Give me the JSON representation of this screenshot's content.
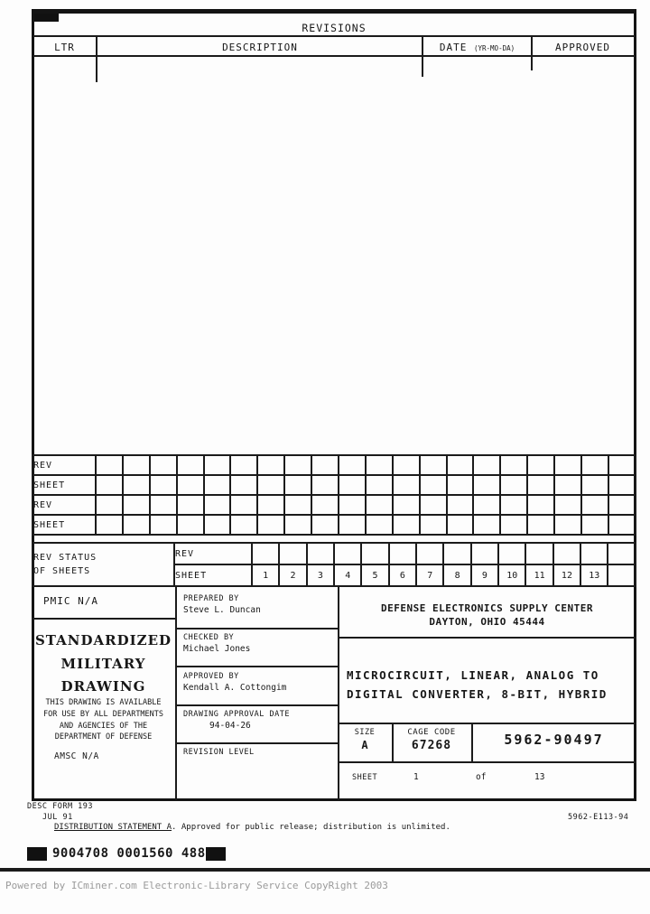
{
  "revisions": {
    "title": "REVISIONS",
    "col_ltr": "LTR",
    "col_description": "DESCRIPTION",
    "col_date": "DATE",
    "col_date_suffix": "(YR-MO-DA)",
    "col_approved": "APPROVED"
  },
  "rev_status": {
    "row_labels": [
      "REV",
      "SHEET",
      "REV",
      "SHEET"
    ],
    "group_label_line1": "REV STATUS",
    "group_label_line2": "OF SHEETS",
    "rev_label": "REV",
    "sheet_label": "SHEET",
    "sheet_numbers": [
      "1",
      "2",
      "3",
      "4",
      "5",
      "6",
      "7",
      "8",
      "9",
      "10",
      "11",
      "12",
      "13"
    ]
  },
  "title_block": {
    "pmic": "PMIC N/A",
    "smd_lines": [
      "STANDARDIZED",
      "MILITARY",
      "DRAWING"
    ],
    "availability_lines": [
      "THIS DRAWING IS AVAILABLE",
      "FOR USE BY ALL DEPARTMENTS",
      "AND AGENCIES OF THE",
      "DEPARTMENT OF DEFENSE"
    ],
    "amsc": "AMSC N/A",
    "prepared_by_label": "PREPARED BY",
    "prepared_by": "Steve L. Duncan",
    "checked_by_label": "CHECKED BY",
    "checked_by": "Michael Jones",
    "approved_by_label": "APPROVED BY",
    "approved_by": "Kendall A. Cottongim",
    "approval_date_label": "DRAWING APPROVAL DATE",
    "approval_date": "94-04-26",
    "revision_level_label": "REVISION LEVEL",
    "agency_line1": "DEFENSE ELECTRONICS SUPPLY CENTER",
    "agency_line2": "DAYTON, OHIO  45444",
    "drawing_title_line1": "MICROCIRCUIT, LINEAR, ANALOG TO",
    "drawing_title_line2": "DIGITAL CONVERTER, 8-BIT, HYBRID",
    "size_label": "SIZE",
    "size": "A",
    "cage_label": "CAGE CODE",
    "cage": "67268",
    "document_number": "5962-90497",
    "sheet_label": "SHEET",
    "sheet_number": "1",
    "of_label": "of",
    "sheet_total": "13"
  },
  "footer": {
    "form": "DESC FORM 193",
    "form_date": "JUL 91",
    "doc_ref": "5962-E113-94",
    "distribution_label": "DISTRIBUTION STATEMENT A",
    "distribution_rest": ".  Approved for public release; distribution is unlimited.",
    "barcode_text": "9004708 0001560 488",
    "powered_by": "Powered by ICminer.com Electronic-Library Service CopyRight 2003"
  }
}
